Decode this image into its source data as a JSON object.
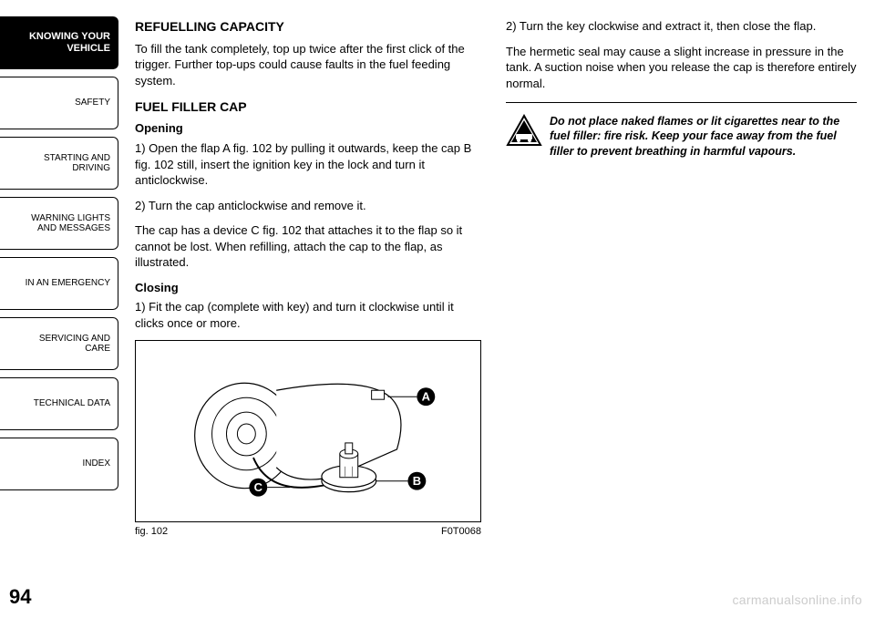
{
  "sidebar": {
    "tabs": [
      {
        "label": "KNOWING YOUR\nVEHICLE",
        "active": true
      },
      {
        "label": "SAFETY",
        "active": false
      },
      {
        "label": "STARTING AND\nDRIVING",
        "active": false
      },
      {
        "label": "WARNING LIGHTS\nAND MESSAGES",
        "active": false
      },
      {
        "label": "IN AN EMERGENCY",
        "active": false
      },
      {
        "label": "SERVICING AND\nCARE",
        "active": false
      },
      {
        "label": "TECHNICAL DATA",
        "active": false
      },
      {
        "label": "INDEX",
        "active": false
      }
    ]
  },
  "left": {
    "h1": "REFUELLING CAPACITY",
    "p1": "To fill the tank completely, top up twice after the first click of the trigger. Further top-ups could cause faults in the fuel feeding system.",
    "h2": "FUEL FILLER CAP",
    "s1": "Opening",
    "p2": "1) Open the flap A fig. 102 by pulling it outwards, keep the cap B fig. 102 still, insert the ignition key in the lock and turn it anticlockwise.",
    "p3": "2) Turn the cap anticlockwise and remove it.",
    "p4": "The cap has a device C fig. 102 that attaches it to the flap so it cannot be lost. When refilling, attach the cap to the flap, as illustrated.",
    "s2": "Closing",
    "p5": "1) Fit the cap (complete with key) and turn it clockwise until it clicks once or more.",
    "fig_label": "fig. 102",
    "fig_code": "F0T0068",
    "callouts": {
      "A": "A",
      "B": "B",
      "C": "C"
    }
  },
  "right": {
    "p1": "2) Turn the key clockwise and extract it, then close the flap.",
    "p2": "The hermetic seal may cause a slight increase in pressure in the tank. A suction noise when you release the cap is therefore entirely normal.",
    "warning_text": "Do not place naked flames or lit cigarettes near to the fuel filler: fire risk. Keep your face away from the fuel filler to prevent breathing in harmful vapours."
  },
  "page_number": "94",
  "watermark": "carmanualsonline.info",
  "colors": {
    "text": "#000000",
    "bg": "#ffffff",
    "watermark": "#cccccc"
  }
}
